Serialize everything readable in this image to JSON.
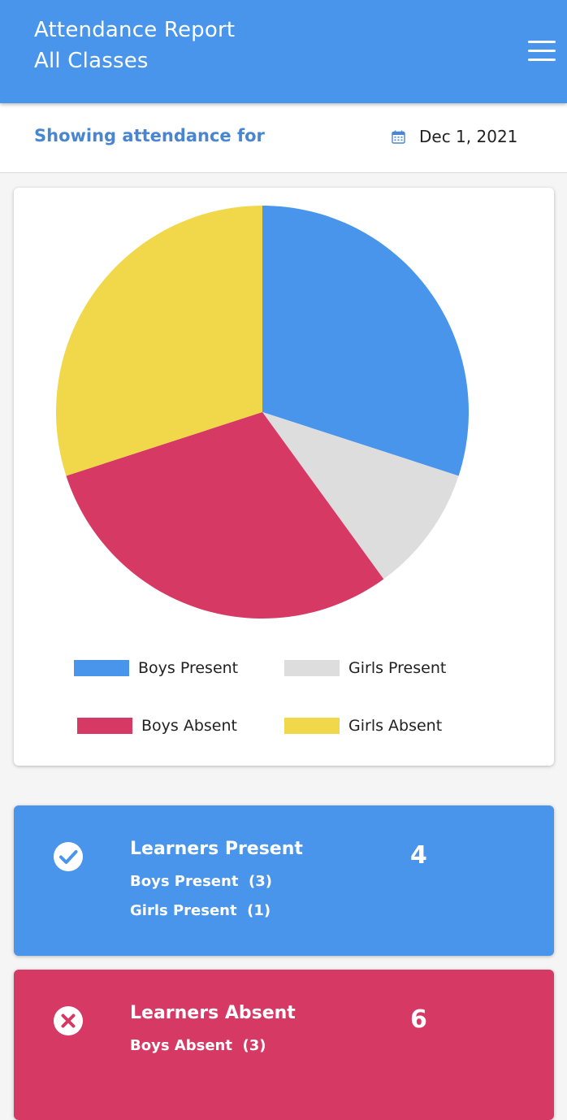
{
  "header": {
    "title": "Attendance Report",
    "subtitle": "All Classes",
    "menu_icon": "hamburger-menu-icon"
  },
  "filter": {
    "label": "Showing attendance for",
    "date": "Dec 1, 2021",
    "date_icon": "calendar-icon"
  },
  "chart_data": {
    "type": "pie",
    "slices": [
      {
        "label": "Boys Present",
        "value": 3,
        "color": "#4895EB"
      },
      {
        "label": "Girls Present",
        "value": 1,
        "color": "#DDDDDD"
      },
      {
        "label": "Boys Absent",
        "value": 3,
        "color": "#D63964"
      },
      {
        "label": "Girls Absent",
        "value": 3,
        "color": "#F1D84A"
      }
    ],
    "legend_placement": "bottom"
  },
  "present_card": {
    "icon": "check-circle-icon",
    "title": "Learners Present",
    "boys_label": "Boys Present",
    "boys_count": "(3)",
    "girls_label": "Girls Present",
    "girls_count": "(1)",
    "total": "4",
    "color": "#4895EB"
  },
  "absent_card": {
    "icon": "x-circle-icon",
    "title": "Learners Absent",
    "boys_label": "Boys Absent",
    "boys_count": "(3)",
    "total": "6",
    "color": "#D63964"
  }
}
